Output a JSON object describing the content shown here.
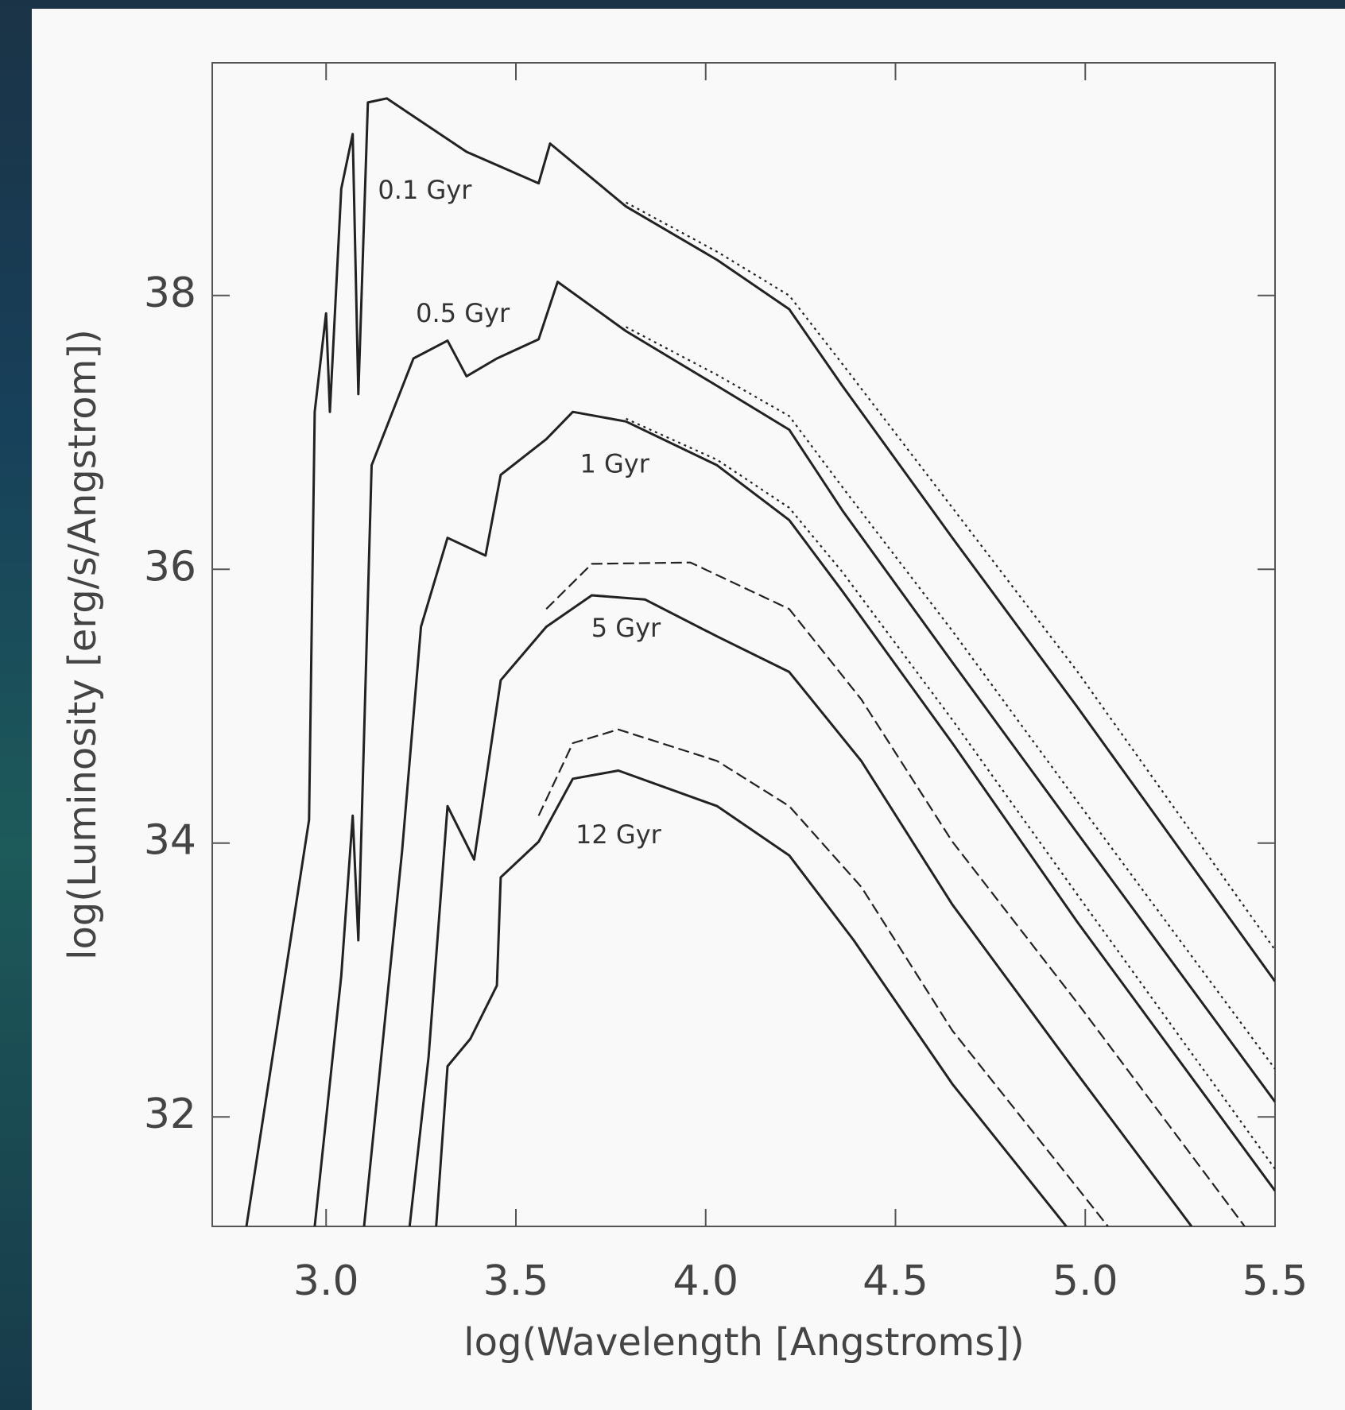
{
  "chart_data": {
    "type": "line",
    "x_label": "log(Wavelength [Angstroms])",
    "y_label": "log(Luminosity [erg/s/Angstrom])",
    "xlim": [
      2.7,
      5.5
    ],
    "ylim": [
      31.2,
      39.7
    ],
    "xticks": [
      {
        "value": 3,
        "label": "3.0"
      },
      {
        "value": 3.5,
        "label": "3.5"
      },
      {
        "value": 4,
        "label": "4.0"
      },
      {
        "value": 4.5,
        "label": "4.5"
      },
      {
        "value": 5,
        "label": "5.0"
      },
      {
        "value": 5.5,
        "label": "5.5"
      }
    ],
    "yticks": [
      32,
      34,
      36,
      38
    ],
    "color": "#222222",
    "series": [
      {
        "dash": "solid",
        "x": [
          2.79,
          2.955,
          2.97,
          3.0,
          3.01,
          3.04,
          3.07,
          3.085,
          3.11,
          3.16,
          3.37,
          3.56,
          3.59,
          3.79,
          4.03,
          4.22,
          4.36,
          4.65,
          4.98,
          5.5
        ],
        "values": [
          31.2,
          34.17,
          37.15,
          37.87,
          37.15,
          38.78,
          39.18,
          37.28,
          39.41,
          39.44,
          39.05,
          38.82,
          39.11,
          38.65,
          38.26,
          37.9,
          37.34,
          36.23,
          34.99,
          32.99
        ]
      },
      {
        "dash": "dotted",
        "x": [
          3.79,
          4.03,
          4.22,
          4.36,
          4.65,
          4.98,
          5.5
        ],
        "values": [
          38.68,
          38.32,
          38.0,
          37.5,
          36.45,
          35.25,
          33.22
        ]
      },
      {
        "dash": "solid",
        "x": [
          2.97,
          3.04,
          3.07,
          3.085,
          3.12,
          3.23,
          3.32,
          3.37,
          3.45,
          3.56,
          3.61,
          3.79,
          4.03,
          4.22,
          4.36,
          4.65,
          4.98,
          5.5
        ],
        "values": [
          31.2,
          33.03,
          34.2,
          33.29,
          36.76,
          37.54,
          37.67,
          37.41,
          37.54,
          37.68,
          38.1,
          37.74,
          37.34,
          37.02,
          36.43,
          35.32,
          34.07,
          32.11
        ]
      },
      {
        "dash": "dotted",
        "x": [
          3.79,
          4.03,
          4.22,
          4.36,
          4.65,
          4.98,
          5.5
        ],
        "values": [
          37.77,
          37.42,
          37.12,
          36.6,
          35.55,
          34.3,
          32.35
        ]
      },
      {
        "dash": "solid",
        "x": [
          3.1,
          3.2,
          3.25,
          3.32,
          3.42,
          3.46,
          3.58,
          3.65,
          3.79,
          4.03,
          4.22,
          4.36,
          4.65,
          4.98,
          5.5
        ],
        "values": [
          31.2,
          33.94,
          35.58,
          36.23,
          36.1,
          36.69,
          36.95,
          37.15,
          37.08,
          36.76,
          36.36,
          35.84,
          34.73,
          33.42,
          31.46
        ]
      },
      {
        "dash": "dotted",
        "x": [
          3.79,
          4.03,
          4.22,
          4.36,
          4.65,
          4.98,
          5.5
        ],
        "values": [
          37.1,
          36.8,
          36.45,
          35.98,
          34.9,
          33.62,
          31.62
        ]
      },
      {
        "dash": "solid",
        "x": [
          3.22,
          3.27,
          3.32,
          3.39,
          3.46,
          3.58,
          3.7,
          3.84,
          4.03,
          4.22,
          4.41,
          4.65,
          4.98,
          5.28
        ],
        "values": [
          31.2,
          32.44,
          34.27,
          33.88,
          35.19,
          35.58,
          35.81,
          35.78,
          35.51,
          35.25,
          34.6,
          33.55,
          32.31,
          31.2
        ]
      },
      {
        "dash": "dashed",
        "x": [
          3.58,
          3.7,
          3.96,
          4.22,
          4.41,
          4.65,
          4.98,
          5.42
        ],
        "values": [
          35.71,
          36.04,
          36.05,
          35.71,
          35.05,
          34.01,
          32.83,
          31.2
        ]
      },
      {
        "dash": "solid",
        "x": [
          3.29,
          3.32,
          3.38,
          3.45,
          3.46,
          3.56,
          3.65,
          3.77,
          4.03,
          4.22,
          4.39,
          4.65,
          4.95
        ],
        "values": [
          31.2,
          32.37,
          32.57,
          32.96,
          33.75,
          34.01,
          34.47,
          34.53,
          34.27,
          33.91,
          33.29,
          32.24,
          31.2
        ]
      },
      {
        "dash": "dashed",
        "x": [
          3.56,
          3.65,
          3.77,
          4.03,
          4.22,
          4.41,
          4.65,
          5.06
        ],
        "values": [
          34.2,
          34.73,
          34.83,
          34.6,
          34.27,
          33.68,
          32.63,
          31.2
        ]
      }
    ],
    "annotations": [
      {
        "text": "0.1 Gyr",
        "x": 3.26,
        "y": 38.76
      },
      {
        "text": "0.5 Gyr",
        "x": 3.36,
        "y": 37.86
      },
      {
        "text": "1 Gyr",
        "x": 3.76,
        "y": 36.76
      },
      {
        "text": "5 Gyr",
        "x": 3.79,
        "y": 35.56
      },
      {
        "text": "12 Gyr",
        "x": 3.77,
        "y": 34.05
      }
    ]
  }
}
